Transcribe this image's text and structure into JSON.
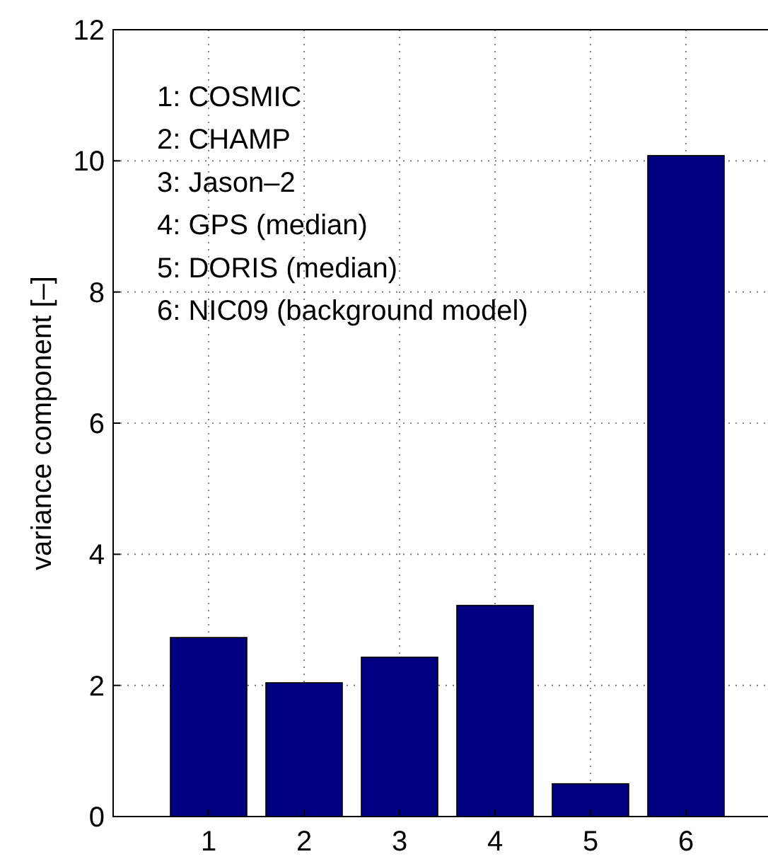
{
  "chart_data": {
    "type": "bar",
    "ylabel": "variance component [–]",
    "categories": [
      "1",
      "2",
      "3",
      "4",
      "5",
      "6"
    ],
    "values": [
      2.73,
      2.04,
      2.43,
      3.22,
      0.5,
      10.08
    ],
    "color": "#000080",
    "ylim": [
      0,
      12
    ],
    "yticks": [
      0,
      2,
      4,
      6,
      8,
      10,
      12
    ],
    "grid": true,
    "annotations": [
      "1: COSMIC",
      "2: CHAMP",
      "3: Jason–2",
      "4: GPS (median)",
      "5: DORIS (median)",
      "6: NIC09 (background model)"
    ]
  }
}
